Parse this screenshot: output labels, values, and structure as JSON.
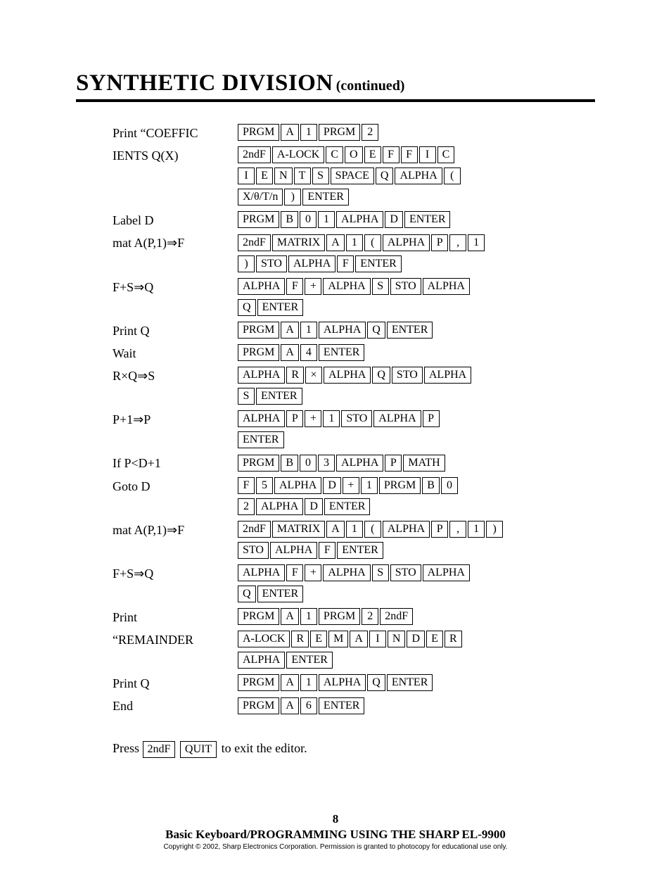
{
  "title": {
    "main": "SYNTHETIC DIVISION",
    "sub": "(continued)"
  },
  "rows": [
    {
      "label": "Print “COEFFIC",
      "lines": [
        [
          "PRGM",
          "A",
          "1",
          "PRGM",
          "2"
        ]
      ]
    },
    {
      "label": "IENTS Q(X)",
      "lines": [
        [
          "2ndF",
          "A-LOCK",
          "C",
          "O",
          "E",
          "F",
          "F",
          "I",
          "C"
        ],
        [
          "I",
          "E",
          "N",
          "T",
          "S",
          "SPACE",
          "Q",
          "ALPHA",
          "("
        ],
        [
          "X/θ/T/n",
          ")",
          "ENTER"
        ]
      ]
    },
    {
      "label": "Label D",
      "lines": [
        [
          "PRGM",
          "B",
          "0",
          "1",
          "ALPHA",
          "D",
          "ENTER"
        ]
      ]
    },
    {
      "label": "mat A(P,1)⇒F",
      "lines": [
        [
          "2ndF",
          "MATRIX",
          "A",
          "1",
          "(",
          "ALPHA",
          "P",
          ",",
          "1"
        ],
        [
          ")",
          "STO",
          "ALPHA",
          "F",
          "ENTER"
        ]
      ]
    },
    {
      "label": "F+S⇒Q",
      "lines": [
        [
          "ALPHA",
          "F",
          "+",
          "ALPHA",
          "S",
          "STO",
          "ALPHA"
        ],
        [
          "Q",
          "ENTER"
        ]
      ]
    },
    {
      "label": "Print Q",
      "lines": [
        [
          "PRGM",
          "A",
          "1",
          "ALPHA",
          "Q",
          "ENTER"
        ]
      ]
    },
    {
      "label": "Wait",
      "lines": [
        [
          "PRGM",
          "A",
          "4",
          "ENTER"
        ]
      ]
    },
    {
      "label": "R×Q⇒S",
      "lines": [
        [
          "ALPHA",
          "R",
          "×",
          "ALPHA",
          "Q",
          "STO",
          "ALPHA"
        ],
        [
          "S",
          "ENTER"
        ]
      ]
    },
    {
      "label": "P+1⇒P",
      "lines": [
        [
          "ALPHA",
          "P",
          "+",
          "1",
          "STO",
          "ALPHA",
          "P"
        ],
        [
          "ENTER"
        ]
      ]
    },
    {
      "label": "If P<D+1",
      "lines": [
        [
          "PRGM",
          "B",
          "0",
          "3",
          "ALPHA",
          "P",
          "MATH"
        ]
      ]
    },
    {
      "label": "Goto D",
      "lines": [
        [
          "F",
          "5",
          "ALPHA",
          "D",
          "+",
          "1",
          "PRGM",
          "B",
          "0"
        ],
        [
          "2",
          "ALPHA",
          "D",
          "ENTER"
        ]
      ]
    },
    {
      "label": "mat A(P,1)⇒F",
      "lines": [
        [
          "2ndF",
          "MATRIX",
          "A",
          "1",
          "(",
          "ALPHA",
          "P",
          ",",
          "1",
          ")"
        ],
        [
          "STO",
          "ALPHA",
          "F",
          "ENTER"
        ]
      ]
    },
    {
      "label": "F+S⇒Q",
      "lines": [
        [
          "ALPHA",
          "F",
          "+",
          "ALPHA",
          "S",
          "STO",
          "ALPHA"
        ],
        [
          "Q",
          "ENTER"
        ]
      ]
    },
    {
      "label": "Print",
      "lines": [
        [
          "PRGM",
          "A",
          "1",
          "PRGM",
          "2",
          "2ndF"
        ]
      ]
    },
    {
      "label": "“REMAINDER",
      "lines": [
        [
          "A-LOCK",
          "R",
          "E",
          "M",
          "A",
          "I",
          "N",
          "D",
          "E",
          "R"
        ],
        [
          "ALPHA",
          "ENTER"
        ]
      ]
    },
    {
      "label": "Print Q",
      "lines": [
        [
          "PRGM",
          "A",
          "1",
          "ALPHA",
          "Q",
          "ENTER"
        ]
      ]
    },
    {
      "label": "End",
      "lines": [
        [
          "PRGM",
          "A",
          "6",
          "ENTER"
        ]
      ]
    }
  ],
  "press": {
    "prefix": "Press",
    "keys": [
      "2ndF",
      "QUIT"
    ],
    "suffix": "to exit the editor."
  },
  "footer": {
    "page": "8",
    "book": "Basic Keyboard/PROGRAMMING USING THE SHARP EL-9900",
    "copy": "Copyright © 2002, Sharp Electronics Corporation.  Permission is granted to photocopy for educational use only."
  }
}
